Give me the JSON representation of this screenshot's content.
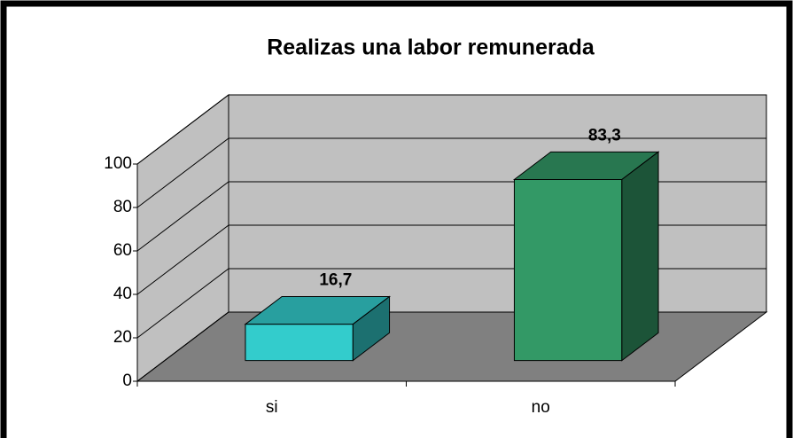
{
  "chart_data": {
    "type": "bar3d",
    "title": "Realizas una labor remunerada",
    "categories": [
      "si",
      "no"
    ],
    "values": [
      16.7,
      83.3
    ],
    "value_labels": [
      "16,7",
      "83,3"
    ],
    "colors": [
      "#33cccc",
      "#339966"
    ],
    "ylim": [
      0,
      100
    ],
    "yticks": [
      0,
      20,
      40,
      60,
      80,
      100
    ],
    "grid": true
  }
}
